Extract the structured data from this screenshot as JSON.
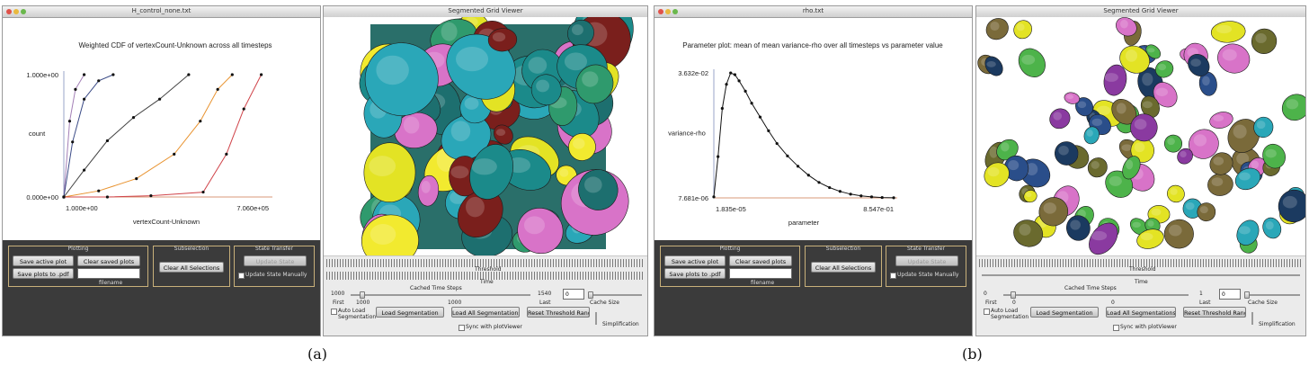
{
  "captions": {
    "a": "(a)",
    "b": "(b)"
  },
  "panel_a": {
    "plot_window": {
      "title": "H_control_none.txt",
      "plot_title": "Weighted CDF of vertexCount-Unknown across all timesteps",
      "y_axis_label": "count",
      "x_axis_label": "vertexCount-Unknown",
      "y_max_label": "1.000e+00",
      "y_min_label": "0.000e+00",
      "x_min_label": "1.000e+00",
      "x_max_label": "7.060e+05",
      "plotting_group": "Plotting",
      "save_active_plot": "Save active plot",
      "clear_saved_plots": "Clear saved plots",
      "save_plots_to_pdf": "Save plots to .pdf",
      "filename_label": "filename",
      "subselection_group": "Subselection",
      "clear_all_selections": "Clear All Selections",
      "state_group": "State Transfer",
      "update_state": "Update State",
      "update_state_manually": "Update State Manually"
    },
    "viewer_window": {
      "title": "Segmented Grid Viewer",
      "threshold_label": "Threshold",
      "time_label": "Time",
      "cached_time_steps": "Cached Time Steps",
      "first_label": "First",
      "first_value": "1000",
      "first_slider_value": "1000",
      "last_label": "Last",
      "last_value": "1000",
      "cache_value_left": "1000",
      "cache_value_right": "1540",
      "cache_input": "0",
      "cache_size_label": "Cache Size",
      "auto_load": "Auto Load Segmentation",
      "load_segmentation": "Load Segmentation",
      "load_all_segmentations": "Load All Segmentations",
      "reset_threshold_range": "Reset Threshold Range",
      "simplification_label": "Simplification",
      "sync_with_plotviewer": "Sync with plotViewer"
    }
  },
  "panel_b": {
    "plot_window": {
      "title": "rho.txt",
      "plot_title": "Parameter plot: mean of mean variance-rho over all timesteps vs parameter value",
      "y_axis_label": "variance-rho",
      "x_axis_label": "parameter",
      "y_max_label": "3.632e-02",
      "y_min_label": "7.681e-06",
      "x_min_label": "1.835e-05",
      "x_max_label": "8.547e-01",
      "plotting_group": "Plotting",
      "save_active_plot": "Save active plot",
      "clear_saved_plots": "Clear saved plots",
      "save_plots_to_pdf": "Save plots to .pdf",
      "filename_label": "filename",
      "subselection_group": "Subselection",
      "clear_all_selections": "Clear All Selections",
      "state_group": "State Transfer",
      "update_state": "Update State",
      "update_state_manually": "Update State Manually"
    },
    "viewer_window": {
      "title": "Segmented Grid Viewer",
      "threshold_label": "Threshold",
      "time_label": "Time",
      "cached_time_steps": "Cached Time Steps",
      "first_label": "First",
      "first_value": "0",
      "first_slider_value": "0",
      "last_label": "Last",
      "last_value": "0",
      "cache_value_left": "0",
      "cache_value_right": "1",
      "cache_input": "0",
      "cache_size_label": "Cache Size",
      "auto_load": "Auto Load Segmentation",
      "load_segmentation": "Load Segmentation",
      "load_all_segmentations": "Load All Segmentations",
      "reset_threshold_range": "Reset Threshold Range",
      "simplification_label": "Simplification",
      "sync_with_plotviewer": "Sync with plotViewer"
    }
  },
  "chart_data": [
    {
      "type": "line",
      "title": "Weighted CDF of vertexCount-Unknown across all timesteps",
      "xlabel": "vertexCount-Unknown",
      "ylabel": "count",
      "xlim": [
        1.0,
        706000
      ],
      "ylim": [
        0.0,
        1.0
      ],
      "series": [
        {
          "color": "#a37fb6",
          "x": [
            1,
            20000,
            40000,
            70000
          ],
          "y": [
            0,
            0.62,
            0.88,
            1.0
          ]
        },
        {
          "color": "#3a4a86",
          "x": [
            1,
            30000,
            70000,
            120000,
            170000
          ],
          "y": [
            0,
            0.45,
            0.8,
            0.95,
            1.0
          ]
        },
        {
          "color": "#444444",
          "x": [
            1,
            70000,
            150000,
            240000,
            330000,
            430000
          ],
          "y": [
            0,
            0.22,
            0.46,
            0.65,
            0.8,
            1.0
          ]
        },
        {
          "color": "#e8922e",
          "x": [
            1,
            120000,
            250000,
            380000,
            470000,
            530000,
            580000
          ],
          "y": [
            0,
            0.05,
            0.15,
            0.35,
            0.62,
            0.88,
            1.0
          ]
        },
        {
          "color": "#d0444a",
          "x": [
            1,
            150000,
            300000,
            480000,
            560000,
            620000,
            680000
          ],
          "y": [
            0,
            0.0,
            0.01,
            0.04,
            0.35,
            0.72,
            1.0
          ]
        }
      ]
    },
    {
      "type": "line",
      "title": "Parameter plot: mean of mean variance-rho over all timesteps vs parameter value",
      "xlabel": "parameter",
      "ylabel": "variance-rho",
      "xlim": [
        1.835e-05,
        0.8547
      ],
      "ylim": [
        7.681e-06,
        0.03632
      ],
      "series": [
        {
          "color": "#111111",
          "x": [
            0.0,
            0.02,
            0.04,
            0.06,
            0.08,
            0.1,
            0.12,
            0.15,
            0.18,
            0.22,
            0.26,
            0.3,
            0.35,
            0.4,
            0.45,
            0.5,
            0.55,
            0.6,
            0.65,
            0.7,
            0.75,
            0.8,
            0.855
          ],
          "y": [
            0.0003,
            0.012,
            0.026,
            0.033,
            0.0363,
            0.0358,
            0.034,
            0.031,
            0.0275,
            0.0235,
            0.0195,
            0.0158,
            0.0122,
            0.0092,
            0.0066,
            0.0045,
            0.003,
            0.0019,
            0.0011,
            0.0006,
            0.0003,
            0.00012,
            4e-05
          ]
        }
      ]
    }
  ]
}
